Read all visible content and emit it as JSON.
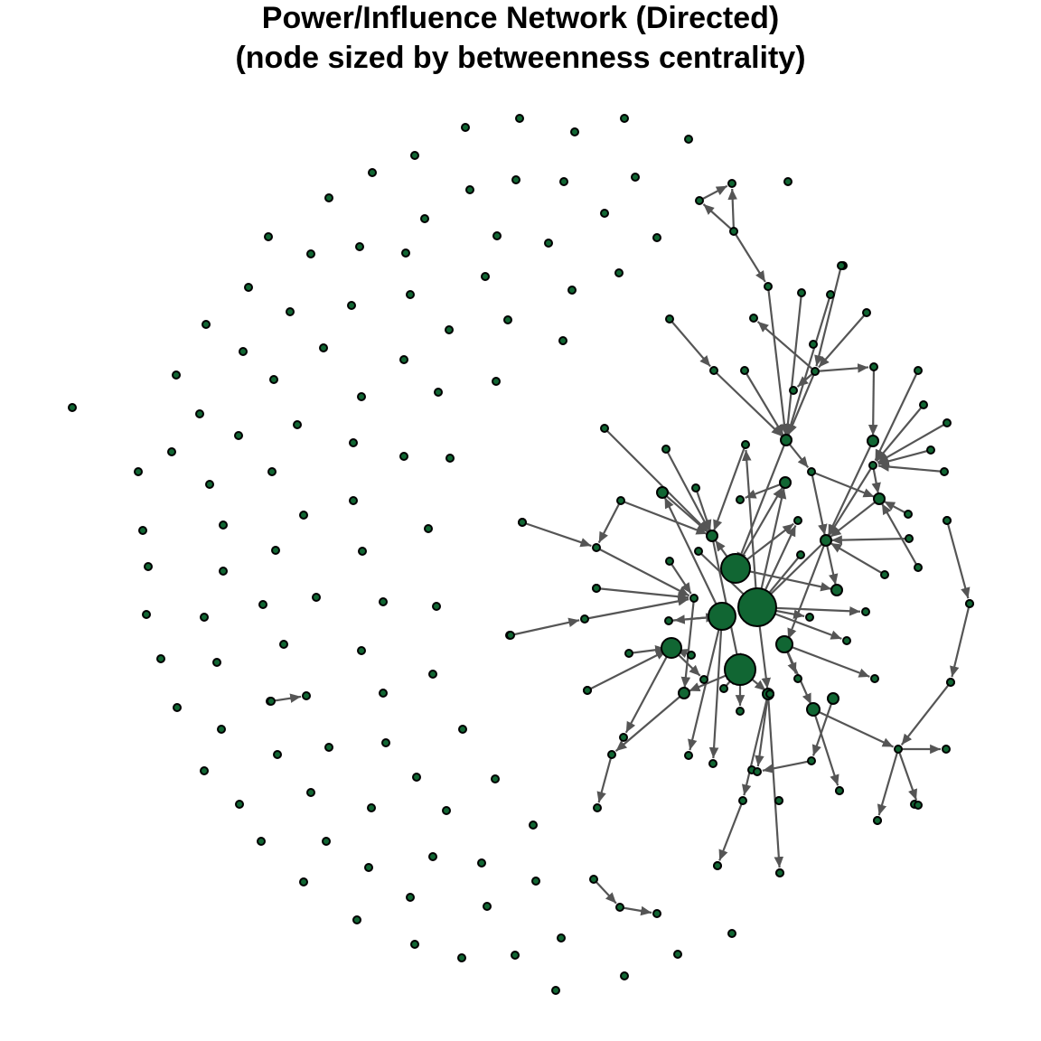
{
  "figure": {
    "title_line_1": "Power/Influence Network (Directed)",
    "title_line_2": "(node sized by betweenness centrality)"
  },
  "style": {
    "node_fill": "#116633",
    "node_stroke": "#000000",
    "edge_color": "#555555"
  },
  "chart_data": {
    "type": "network",
    "directed": true,
    "node_size_metric": "betweenness centrality",
    "isolated_node_count": 123,
    "connected_node_count": 100,
    "hub_nodes_large": 5
  }
}
